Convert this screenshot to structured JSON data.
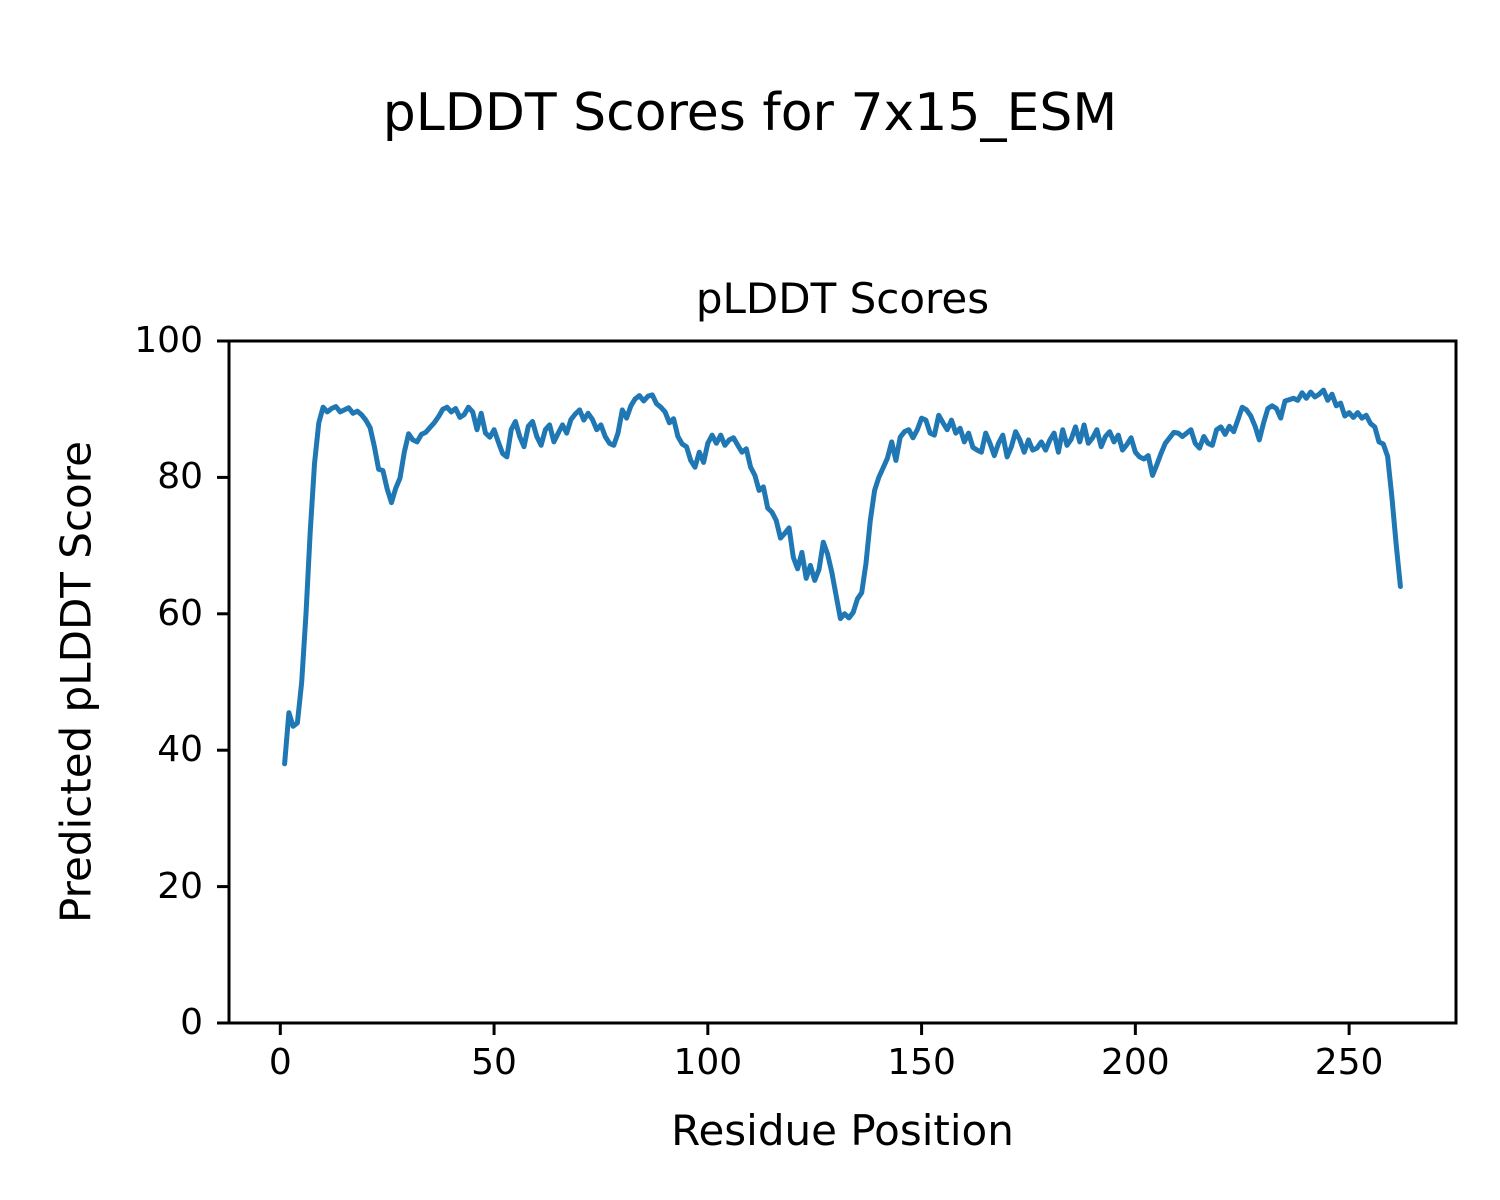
{
  "figure": {
    "suptitle": "pLDDT Scores for 7x15_ESM",
    "background": "#ffffff",
    "text_color": "#000000"
  },
  "chart_data": {
    "type": "line",
    "title": "pLDDT Scores",
    "xlabel": "Residue Position",
    "ylabel": "Predicted pLDDT Score",
    "xlim": [
      -12,
      275
    ],
    "ylim": [
      0,
      100
    ],
    "xticks": [
      0,
      50,
      100,
      150,
      200,
      250
    ],
    "yticks": [
      0,
      20,
      40,
      60,
      80,
      100
    ],
    "grid": false,
    "legend_position": "none",
    "line_color": "#1f77b4",
    "line_width": 5,
    "series": [
      {
        "name": "pLDDT",
        "x_start": 1,
        "x_step": 1,
        "values": [
          38.0,
          45.5,
          43.5,
          44.0,
          50.0,
          60.0,
          72.0,
          82.0,
          88.0,
          90.3,
          89.6,
          90.1,
          90.4,
          89.6,
          89.9,
          90.2,
          89.4,
          89.7,
          89.2,
          88.4,
          87.3,
          84.5,
          81.2,
          81.0,
          78.3,
          76.3,
          78.4,
          79.9,
          83.7,
          86.4,
          85.5,
          85.2,
          86.3,
          86.6,
          87.3,
          88.0,
          88.9,
          90.0,
          90.3,
          89.6,
          90.1,
          88.8,
          89.2,
          90.3,
          89.6,
          87.0,
          89.4,
          86.5,
          85.9,
          87.0,
          85.2,
          83.5,
          83.0,
          87.0,
          88.2,
          86.0,
          84.5,
          87.5,
          88.2,
          86.0,
          84.7,
          87.0,
          87.7,
          85.2,
          86.5,
          87.7,
          86.5,
          88.5,
          89.3,
          89.9,
          88.4,
          89.4,
          88.5,
          87.0,
          87.7,
          86.0,
          85.0,
          84.7,
          86.5,
          89.9,
          88.7,
          90.5,
          91.5,
          92.0,
          91.2,
          91.9,
          92.1,
          90.8,
          90.3,
          89.6,
          88.0,
          88.6,
          86.0,
          84.9,
          84.5,
          82.5,
          81.5,
          83.7,
          82.2,
          85.0,
          86.2,
          85.0,
          86.2,
          84.7,
          85.5,
          85.8,
          84.7,
          83.7,
          84.2,
          81.5,
          80.3,
          78.1,
          78.6,
          75.5,
          74.9,
          73.7,
          71.1,
          71.8,
          72.6,
          68.3,
          66.6,
          69.0,
          65.2,
          67.1,
          64.9,
          66.5,
          70.5,
          68.8,
          66.1,
          62.7,
          59.3,
          60.0,
          59.4,
          60.2,
          62.2,
          63.1,
          67.4,
          73.7,
          78.1,
          80.0,
          81.4,
          82.8,
          85.2,
          82.5,
          85.9,
          86.7,
          87.0,
          85.8,
          87.0,
          88.7,
          88.4,
          86.5,
          86.2,
          89.1,
          88.0,
          87.0,
          88.4,
          86.5,
          87.2,
          85.2,
          86.5,
          84.4,
          84.0,
          83.7,
          86.5,
          85.0,
          83.2,
          85.0,
          86.2,
          83.0,
          84.5,
          86.7,
          85.5,
          83.7,
          85.5,
          84.0,
          84.3,
          85.2,
          84.0,
          85.5,
          86.5,
          83.7,
          87.0,
          84.7,
          85.6,
          87.4,
          85.2,
          87.7,
          85.0,
          85.8,
          87.0,
          84.5,
          86.0,
          86.7,
          85.2,
          86.2,
          84.0,
          84.8,
          85.8,
          83.7,
          83.0,
          82.7,
          83.2,
          80.3,
          81.8,
          83.5,
          85.0,
          85.8,
          86.6,
          86.5,
          86.0,
          86.5,
          87.0,
          85.0,
          84.3,
          86.0,
          85.0,
          84.7,
          87.0,
          87.4,
          86.3,
          87.5,
          86.7,
          88.5,
          90.3,
          89.9,
          89.0,
          87.5,
          85.5,
          88.0,
          90.1,
          90.5,
          90.1,
          88.7,
          91.2,
          91.4,
          91.6,
          91.3,
          92.4,
          91.6,
          92.5,
          91.8,
          92.2,
          92.8,
          91.3,
          92.2,
          90.5,
          90.9,
          89.0,
          89.5,
          88.8,
          89.5,
          88.7,
          89.1,
          87.9,
          87.4,
          85.2,
          84.9,
          83.1,
          77.1,
          70.3,
          64.0
        ]
      }
    ]
  }
}
